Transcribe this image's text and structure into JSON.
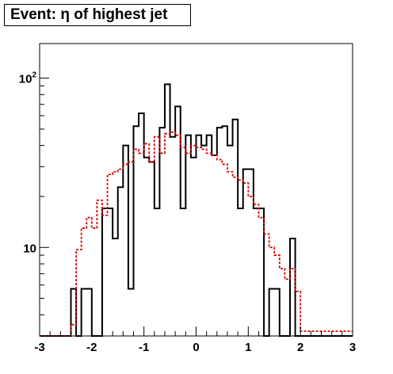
{
  "chart_data": {
    "type": "histogram",
    "title": "Event: η of highest jet",
    "xlabel": "",
    "ylabel": "",
    "xlim": [
      -3,
      3
    ],
    "ylim": [
      3,
      160
    ],
    "yscale": "log",
    "grid": false,
    "legend": "none",
    "x_ticks": [
      {
        "value": -3,
        "label": "-3"
      },
      {
        "value": -2,
        "label": "-2"
      },
      {
        "value": -1,
        "label": "-1"
      },
      {
        "value": 0,
        "label": "0"
      },
      {
        "value": 1,
        "label": "1"
      },
      {
        "value": 2,
        "label": "2"
      },
      {
        "value": 3,
        "label": "3"
      }
    ],
    "y_ticks": [
      {
        "value": 10,
        "label_base": "10",
        "label_exp": ""
      },
      {
        "value": 100,
        "label_base": "10",
        "label_exp": "2"
      }
    ],
    "bin_edges_start": -3.0,
    "bin_width": 0.1,
    "series": [
      {
        "style": "solid",
        "color": "#000000",
        "values": [
          0,
          0,
          0,
          0,
          0,
          0,
          5.7,
          0,
          5.7,
          5.7,
          0,
          0,
          17,
          17,
          11.3,
          22.7,
          40,
          5.7,
          52,
          62,
          34,
          32,
          17,
          51,
          92,
          45,
          68,
          17,
          46,
          34,
          46,
          40,
          46,
          35,
          51,
          52,
          40,
          57,
          17,
          29,
          29,
          17,
          17,
          0,
          5.7,
          5.7,
          0,
          0,
          11.3,
          0,
          0,
          0,
          0,
          0,
          0,
          0,
          0,
          0,
          0,
          0
        ]
      },
      {
        "style": "dashed",
        "color": "#e00000",
        "values": [
          0,
          0,
          0,
          0,
          0,
          0,
          3.5,
          9.7,
          13,
          15,
          13,
          19,
          15.5,
          27,
          28,
          29,
          31,
          32,
          38,
          36,
          41,
          32,
          45,
          36,
          47,
          48,
          46,
          39,
          36,
          40,
          39,
          38,
          36,
          35,
          33,
          31,
          28,
          26,
          25,
          24,
          20,
          18,
          15,
          12,
          10,
          9,
          7.5,
          6.5,
          7.5,
          5.5,
          3.2,
          3.2,
          3.2,
          3.2,
          3.2,
          3.2,
          3.2,
          3.2,
          3.2,
          3.2
        ]
      }
    ]
  }
}
